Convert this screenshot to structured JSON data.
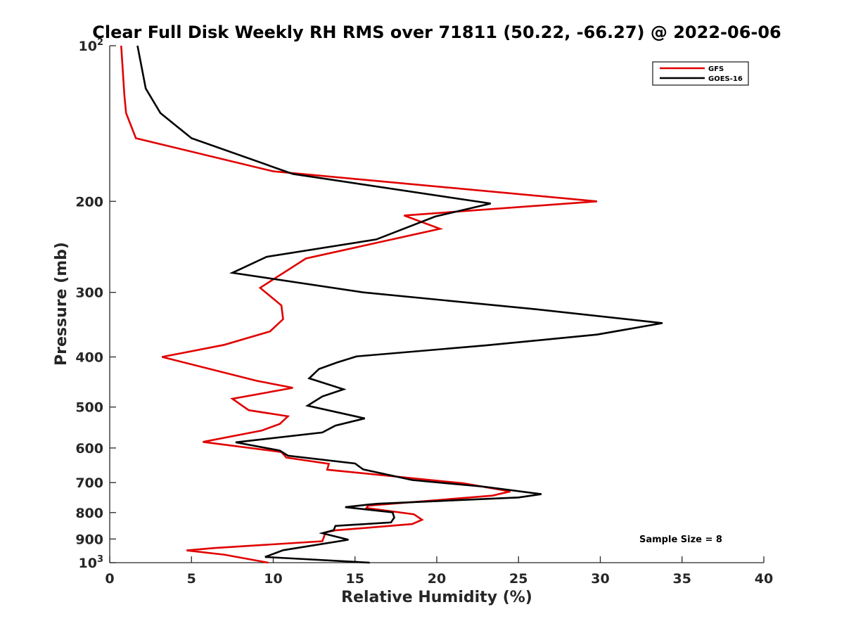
{
  "chart_data": {
    "type": "line",
    "title": "Clear Full Disk Weekly RH RMS over 71811 (50.22, -66.27) @ 2022-06-06",
    "xlabel": "Relative Humidity (%)",
    "ylabel": "Pressure (mb)",
    "xlim": [
      0,
      40
    ],
    "ylim": [
      100,
      1000
    ],
    "y_scale": "log",
    "y_reversed": true,
    "grid": false,
    "legend_position": "top-right",
    "x_ticks": [
      "0",
      "5",
      "10",
      "15",
      "20",
      "25",
      "30",
      "35",
      "40"
    ],
    "y_ticks": [
      {
        "value": 100,
        "base": "10",
        "exp": "2"
      },
      {
        "value": 200,
        "label": "200"
      },
      {
        "value": 300,
        "label": "300"
      },
      {
        "value": 400,
        "label": "400"
      },
      {
        "value": 500,
        "label": "500"
      },
      {
        "value": 600,
        "label": "600"
      },
      {
        "value": 700,
        "label": "700"
      },
      {
        "value": 800,
        "label": "800"
      },
      {
        "value": 900,
        "label": "900"
      },
      {
        "value": 1000,
        "base": "10",
        "exp": "3"
      }
    ],
    "annotation": "Sample Size = 8",
    "series": [
      {
        "name": "GFS",
        "color": "#e00000",
        "points": [
          [
            0.7,
            100
          ],
          [
            0.9,
            125
          ],
          [
            1.0,
            135
          ],
          [
            1.6,
            151
          ],
          [
            10.0,
            175
          ],
          [
            29.8,
            200
          ],
          [
            18.0,
            213
          ],
          [
            20.2,
            226
          ],
          [
            12.0,
            258
          ],
          [
            9.2,
            294
          ],
          [
            10.5,
            318
          ],
          [
            10.6,
            338
          ],
          [
            9.8,
            357
          ],
          [
            7.0,
            379
          ],
          [
            3.2,
            400
          ],
          [
            9.0,
            445
          ],
          [
            11.2,
            459
          ],
          [
            7.5,
            482
          ],
          [
            8.5,
            507
          ],
          [
            10.9,
            521
          ],
          [
            10.4,
            539
          ],
          [
            9.3,
            555
          ],
          [
            5.7,
            584
          ],
          [
            10.5,
            611
          ],
          [
            10.8,
            626
          ],
          [
            13.4,
            644
          ],
          [
            13.3,
            661
          ],
          [
            21.6,
            702
          ],
          [
            24.5,
            728
          ],
          [
            23.4,
            742
          ],
          [
            15.8,
            776
          ],
          [
            15.7,
            784
          ],
          [
            18.6,
            806
          ],
          [
            19.1,
            826
          ],
          [
            18.5,
            842
          ],
          [
            13.8,
            866
          ],
          [
            13.2,
            874
          ],
          [
            13.0,
            909
          ],
          [
            6.4,
            937
          ],
          [
            4.7,
            947
          ],
          [
            7.0,
            965
          ],
          [
            9.7,
            1000
          ]
        ]
      },
      {
        "name": "GOES-16",
        "color": "#000000",
        "points": [
          [
            1.7,
            100
          ],
          [
            2.2,
            121
          ],
          [
            3.1,
            135
          ],
          [
            5.0,
            151
          ],
          [
            11.2,
            177
          ],
          [
            23.3,
            202
          ],
          [
            19.9,
            214
          ],
          [
            16.3,
            237
          ],
          [
            9.6,
            256
          ],
          [
            7.5,
            275
          ],
          [
            15.5,
            300
          ],
          [
            25.9,
            323
          ],
          [
            33.8,
            344
          ],
          [
            29.8,
            362
          ],
          [
            23.0,
            380
          ],
          [
            15.1,
            399
          ],
          [
            13.9,
            410
          ],
          [
            12.8,
            422
          ],
          [
            12.2,
            440
          ],
          [
            14.3,
            462
          ],
          [
            13.0,
            477
          ],
          [
            12.1,
            497
          ],
          [
            15.6,
            526
          ],
          [
            13.8,
            543
          ],
          [
            13.0,
            560
          ],
          [
            7.7,
            585
          ],
          [
            10.4,
            607
          ],
          [
            10.9,
            621
          ],
          [
            15.0,
            643
          ],
          [
            15.5,
            660
          ],
          [
            18.5,
            692
          ],
          [
            22.9,
            713
          ],
          [
            26.4,
            737
          ],
          [
            25.0,
            748
          ],
          [
            16.4,
            769
          ],
          [
            15.8,
            772
          ],
          [
            14.4,
            781
          ],
          [
            17.3,
            799
          ],
          [
            17.4,
            818
          ],
          [
            17.2,
            836
          ],
          [
            13.8,
            849
          ],
          [
            13.7,
            865
          ],
          [
            13.0,
            877
          ],
          [
            14.6,
            903
          ],
          [
            10.6,
            946
          ],
          [
            9.5,
            975
          ],
          [
            15.9,
            1000
          ]
        ]
      }
    ]
  }
}
